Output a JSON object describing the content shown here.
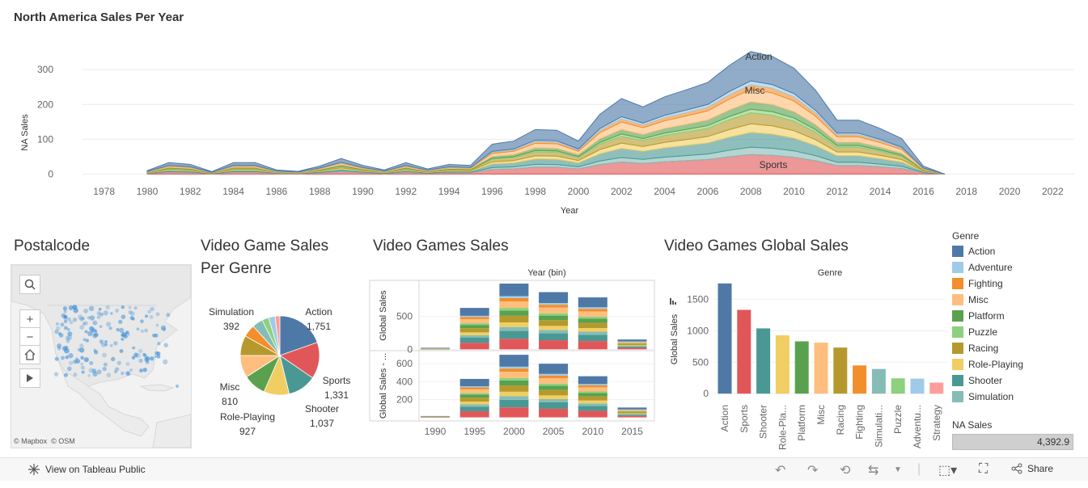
{
  "dashboard": {
    "area_title": "North America Sales Per Year",
    "map_title": "Postalcode",
    "pie_title_line1": "Video Game Sales",
    "pie_title_line2": "Per Genre",
    "bars_title": "Video Games Sales",
    "global_title": "Video Games Global Sales"
  },
  "colors": {
    "Action": "#4e79a7",
    "Adventure": "#a0cbe8",
    "Fighting": "#f28e2b",
    "Misc": "#ffbe7d",
    "Platform": "#59a14f",
    "Puzzle": "#8cd17d",
    "Racing": "#b6992d",
    "Role-Playing": "#f1ce63",
    "Shooter": "#499894",
    "Simulation": "#86bcb6",
    "Sports": "#e15759",
    "Strategy": "#ff9d9a"
  },
  "map": {
    "attribution_mapbox": "© Mapbox",
    "attribution_osm": "© OSM",
    "controls": {
      "search": "search-icon",
      "zoom_in": "+",
      "zoom_out": "−",
      "home": "home-icon",
      "play": "play-icon"
    }
  },
  "legend": {
    "title": "Genre",
    "items": [
      "Action",
      "Adventure",
      "Fighting",
      "Misc",
      "Platform",
      "Puzzle",
      "Racing",
      "Role-Playing",
      "Shooter",
      "Simulation"
    ],
    "size_title": "NA Sales",
    "size_value": "4,392.9"
  },
  "toolbar": {
    "view_label": "View on Tableau Public",
    "share_label": "Share"
  },
  "chart_data": [
    {
      "type": "area",
      "title": "North America Sales Per Year",
      "xlabel": "Year",
      "ylabel": "NA Sales",
      "xlim": [
        1977,
        2023
      ],
      "ylim": [
        -15,
        370
      ],
      "x_ticks": [
        1978,
        1980,
        1982,
        1984,
        1986,
        1988,
        1990,
        1992,
        1994,
        1996,
        1998,
        2000,
        2002,
        2004,
        2006,
        2008,
        2010,
        2012,
        2014,
        2016,
        2018,
        2020,
        2022
      ],
      "y_ticks": [
        0,
        100,
        200,
        300
      ],
      "annotations": [
        "Action",
        "Misc",
        "Sports"
      ],
      "years": [
        1980,
        1981,
        1982,
        1983,
        1984,
        1985,
        1986,
        1987,
        1988,
        1989,
        1990,
        1991,
        1992,
        1993,
        1994,
        1995,
        1996,
        1997,
        1998,
        1999,
        2000,
        2001,
        2002,
        2003,
        2004,
        2005,
        2006,
        2007,
        2008,
        2009,
        2010,
        2011,
        2012,
        2013,
        2014,
        2015,
        2016,
        2017
      ],
      "totals": [
        10,
        33,
        28,
        7,
        33,
        33,
        12,
        8,
        23,
        45,
        25,
        12,
        33,
        15,
        28,
        25,
        86,
        95,
        128,
        126,
        95,
        172,
        217,
        193,
        222,
        242,
        263,
        312,
        352,
        338,
        304,
        241,
        155,
        155,
        131,
        102,
        23,
        0
      ],
      "series": [
        {
          "name": "Sports",
          "share": 0.16
        },
        {
          "name": "Simulation",
          "share": 0.06
        },
        {
          "name": "Shooter",
          "share": 0.12
        },
        {
          "name": "Role-Playing",
          "share": 0.07
        },
        {
          "name": "Racing",
          "share": 0.09
        },
        {
          "name": "Puzzle",
          "share": 0.03
        },
        {
          "name": "Platform",
          "share": 0.06
        },
        {
          "name": "Misc",
          "share": 0.1
        },
        {
          "name": "Fighting",
          "share": 0.04
        },
        {
          "name": "Adventure",
          "share": 0.03
        },
        {
          "name": "Action",
          "share": 0.24
        }
      ]
    },
    {
      "type": "pie",
      "title": "Video Game Sales Per Genre",
      "slices": [
        {
          "name": "Action",
          "value": 1751,
          "label": "1,751"
        },
        {
          "name": "Sports",
          "value": 1331,
          "label": "1,331"
        },
        {
          "name": "Shooter",
          "value": 1037,
          "label": "1,037"
        },
        {
          "name": "Role-Playing",
          "value": 927,
          "label": "927"
        },
        {
          "name": "Platform",
          "value": 831,
          "label": ""
        },
        {
          "name": "Misc",
          "value": 810,
          "label": "810"
        },
        {
          "name": "Racing",
          "value": 732,
          "label": ""
        },
        {
          "name": "Fighting",
          "value": 448,
          "label": ""
        },
        {
          "name": "Simulation",
          "value": 392,
          "label": "392"
        },
        {
          "name": "Puzzle",
          "value": 244,
          "label": ""
        },
        {
          "name": "Adventure",
          "value": 239,
          "label": ""
        },
        {
          "name": "Strategy",
          "value": 175,
          "label": ""
        }
      ],
      "labeled": [
        "Action",
        "Sports",
        "Shooter",
        "Role-Playing",
        "Misc",
        "Simulation"
      ]
    },
    {
      "type": "bar",
      "title": "Video Games Sales",
      "column_header": "Year (bin)",
      "categories": [
        "1990",
        "1995",
        "2000",
        "2005",
        "2010",
        "2015"
      ],
      "panes": [
        {
          "ylabel": "Global Sales",
          "ylim": [
            -20,
            1000
          ],
          "y_ticks": [
            0,
            500
          ],
          "totals": [
            25,
            630,
            1000,
            870,
            790,
            150
          ]
        },
        {
          "ylabel": "Global Sales - ...",
          "ylim": [
            -40,
            710
          ],
          "y_ticks": [
            200,
            400,
            600
          ],
          "totals": [
            15,
            430,
            700,
            600,
            460,
            110
          ]
        }
      ],
      "stack_order": [
        "Sports",
        "Shooter",
        "Simulation",
        "Role-Playing",
        "Racing",
        "Platform",
        "Puzzle",
        "Misc",
        "Fighting",
        "Adventure",
        "Action"
      ],
      "stack_shares": [
        0.16,
        0.12,
        0.06,
        0.07,
        0.1,
        0.08,
        0.04,
        0.1,
        0.05,
        0.03,
        0.19
      ]
    },
    {
      "type": "bar",
      "title": "Video Games Global Sales",
      "column_header": "Genre",
      "ylabel": "Global Sales",
      "ylim": [
        -100,
        1800
      ],
      "y_ticks": [
        0,
        500,
        1000,
        1500
      ],
      "categories": [
        "Action",
        "Sports",
        "Shooter",
        "Role-Pla...",
        "Platform",
        "Misc",
        "Racing",
        "Fighting",
        "Simulati...",
        "Puzzle",
        "Adventu...",
        "Strategy"
      ],
      "color_keys": [
        "Action",
        "Sports",
        "Shooter",
        "Role-Playing",
        "Platform",
        "Misc",
        "Racing",
        "Fighting",
        "Simulation",
        "Puzzle",
        "Adventure",
        "Strategy"
      ],
      "values": [
        1751,
        1331,
        1037,
        927,
        831,
        810,
        732,
        448,
        392,
        244,
        239,
        175
      ]
    }
  ]
}
